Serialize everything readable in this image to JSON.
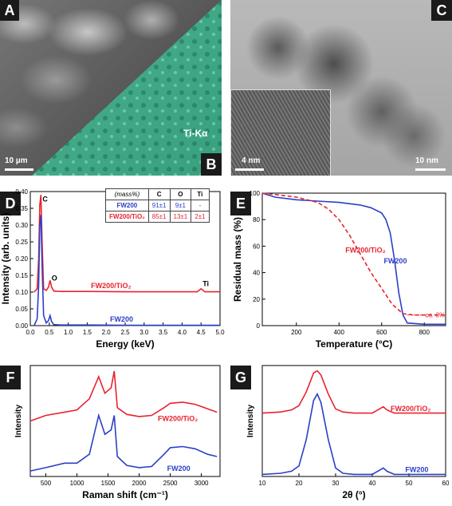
{
  "panels": {
    "A": {
      "letter": "A",
      "scale": "10 µm"
    },
    "B": {
      "letter": "B",
      "element_label": "Ti-Kα"
    },
    "C": {
      "letter": "C",
      "inset_scale": "4 nm",
      "scale": "10 nm"
    },
    "D": {
      "letter": "D"
    },
    "E": {
      "letter": "E"
    },
    "F": {
      "letter": "F"
    },
    "G": {
      "letter": "G"
    }
  },
  "table": {
    "header": [
      "(mass%)",
      "C",
      "O",
      "Ti"
    ],
    "rows": [
      {
        "label": "FW200",
        "values": [
          "91±1",
          "9±1",
          "-"
        ],
        "color": "#2b3fc8"
      },
      {
        "label": "FW200/TiO₂",
        "values": [
          "85±1",
          "13±1",
          "2±1"
        ],
        "color": "#e8232f"
      }
    ]
  },
  "colors": {
    "fw200": "#2b3fc8",
    "fw200tio2": "#e8232f"
  },
  "chart_data": [
    {
      "id": "D",
      "type": "line",
      "xlabel": "Energy (keV)",
      "ylabel": "Intensity (arb. units)",
      "xlim": [
        0,
        5
      ],
      "ylim": [
        0,
        0.4
      ],
      "xticks": [
        "0.0",
        "0.5",
        "1.0",
        "1.5",
        "2.0",
        "2.5",
        "3.0",
        "3.5",
        "4.0",
        "4.5",
        "5.0"
      ],
      "yticks": [
        "0.00",
        "0.05",
        "0.10",
        "0.15",
        "0.20",
        "0.25",
        "0.30",
        "0.35",
        "0.40"
      ],
      "peak_labels": [
        {
          "text": "C",
          "x": 0.28,
          "y": 0.37
        },
        {
          "text": "O",
          "x": 0.52,
          "y": 0.135
        },
        {
          "text": "Ti",
          "x": 4.5,
          "y": 0.118
        }
      ],
      "series": [
        {
          "name": "FW200/TiO₂",
          "color": "#e8232f",
          "x": [
            0.1,
            0.18,
            0.22,
            0.25,
            0.28,
            0.31,
            0.35,
            0.42,
            0.48,
            0.52,
            0.56,
            0.62,
            0.8,
            1.5,
            2.5,
            3.5,
            4.4,
            4.5,
            4.6,
            5.0
          ],
          "y": [
            0.1,
            0.11,
            0.2,
            0.36,
            0.39,
            0.25,
            0.11,
            0.105,
            0.115,
            0.135,
            0.115,
            0.103,
            0.102,
            0.102,
            0.101,
            0.101,
            0.101,
            0.11,
            0.101,
            0.101
          ]
        },
        {
          "name": "FW200",
          "color": "#2b3fc8",
          "x": [
            0.1,
            0.18,
            0.22,
            0.25,
            0.28,
            0.31,
            0.35,
            0.42,
            0.48,
            0.52,
            0.56,
            0.62,
            0.8,
            1.5,
            2.5,
            3.5,
            5.0
          ],
          "y": [
            0.0,
            0.02,
            0.12,
            0.3,
            0.33,
            0.18,
            0.03,
            0.008,
            0.015,
            0.03,
            0.012,
            0.003,
            0.002,
            0.002,
            0.001,
            0.001,
            0.001
          ]
        }
      ],
      "series_labels": [
        {
          "text": "FW200/TiO₂",
          "x": 1.6,
          "y": 0.112
        },
        {
          "text": "FW200",
          "x": 2.1,
          "y": 0.012
        }
      ]
    },
    {
      "id": "E",
      "type": "line",
      "xlabel": "Temperature (°C)",
      "ylabel": "Residual mass (%)",
      "xlim": [
        40,
        900
      ],
      "ylim": [
        0,
        100
      ],
      "xticks": [
        "200",
        "400",
        "600",
        "800"
      ],
      "yticks": [
        "0",
        "20",
        "40",
        "60",
        "80",
        "100"
      ],
      "annotation": "ca. 8%",
      "series": [
        {
          "name": "FW200",
          "color": "#2b3fc8",
          "dash": "solid",
          "x": [
            40,
            100,
            200,
            300,
            400,
            500,
            550,
            600,
            620,
            640,
            660,
            680,
            700,
            720,
            800,
            900
          ],
          "y": [
            100,
            97,
            95,
            94,
            93,
            91,
            89,
            85,
            80,
            70,
            50,
            25,
            8,
            2,
            1,
            1
          ]
        },
        {
          "name": "FW200/TiO₂",
          "color": "#e8232f",
          "dash": "dashed",
          "x": [
            40,
            100,
            200,
            300,
            350,
            400,
            450,
            500,
            550,
            600,
            650,
            700,
            750,
            800,
            900
          ],
          "y": [
            100,
            99,
            97,
            93,
            88,
            80,
            68,
            54,
            40,
            28,
            16,
            9,
            8,
            8,
            8
          ]
        }
      ],
      "series_labels": [
        {
          "text": "FW200/TiO₂",
          "x": 430,
          "y": 55
        },
        {
          "text": "FW200",
          "x": 610,
          "y": 47
        }
      ]
    },
    {
      "id": "F",
      "type": "line",
      "xlabel": "Raman shift (cm⁻¹)",
      "ylabel": "Intensity",
      "xlim": [
        250,
        3300
      ],
      "xticks": [
        "500",
        "1000",
        "1500",
        "2000",
        "2500",
        "3000"
      ],
      "series": [
        {
          "name": "FW200/TiO₂",
          "color": "#e8232f",
          "x": [
            250,
            500,
            800,
            1000,
            1200,
            1350,
            1450,
            1550,
            1600,
            1650,
            1800,
            2000,
            2200,
            2400,
            2500,
            2700,
            2900,
            3100,
            3250
          ],
          "y": [
            0.5,
            0.55,
            0.58,
            0.6,
            0.7,
            0.9,
            0.75,
            0.8,
            0.95,
            0.62,
            0.56,
            0.54,
            0.55,
            0.62,
            0.66,
            0.67,
            0.65,
            0.61,
            0.58
          ]
        },
        {
          "name": "FW200",
          "color": "#2b3fc8",
          "x": [
            250,
            500,
            800,
            1000,
            1200,
            1350,
            1450,
            1550,
            1600,
            1650,
            1800,
            2000,
            2200,
            2400,
            2500,
            2700,
            2900,
            3100,
            3250
          ],
          "y": [
            0.05,
            0.08,
            0.12,
            0.12,
            0.2,
            0.55,
            0.38,
            0.42,
            0.55,
            0.18,
            0.1,
            0.08,
            0.09,
            0.2,
            0.26,
            0.27,
            0.25,
            0.2,
            0.18
          ]
        }
      ],
      "series_labels": [
        {
          "text": "FW200/TiO₂",
          "x": 2300,
          "y": 0.5
        },
        {
          "text": "FW200",
          "x": 2450,
          "y": 0.05
        }
      ]
    },
    {
      "id": "G",
      "type": "line",
      "xlabel": "2θ (°)",
      "ylabel": "Intensity",
      "xlim": [
        10,
        60
      ],
      "xticks": [
        "10",
        "20",
        "30",
        "40",
        "50",
        "60"
      ],
      "series": [
        {
          "name": "FW200/TiO₂",
          "color": "#e8232f",
          "x": [
            10,
            15,
            18,
            20,
            22,
            24,
            25,
            26,
            28,
            30,
            32,
            35,
            40,
            42,
            43,
            44,
            46,
            50,
            55,
            60
          ],
          "y": [
            0.6,
            0.61,
            0.63,
            0.67,
            0.8,
            0.98,
            1.0,
            0.96,
            0.78,
            0.64,
            0.61,
            0.6,
            0.6,
            0.64,
            0.66,
            0.63,
            0.6,
            0.6,
            0.6,
            0.6
          ]
        },
        {
          "name": "FW200",
          "color": "#2b3fc8",
          "x": [
            10,
            15,
            18,
            20,
            22,
            24,
            25,
            26,
            28,
            30,
            32,
            35,
            40,
            42,
            43,
            44,
            46,
            50,
            55,
            60
          ],
          "y": [
            0.02,
            0.03,
            0.05,
            0.1,
            0.35,
            0.72,
            0.78,
            0.7,
            0.35,
            0.08,
            0.03,
            0.02,
            0.02,
            0.06,
            0.08,
            0.05,
            0.02,
            0.02,
            0.02,
            0.02
          ]
        }
      ],
      "series_labels": [
        {
          "text": "FW200/TiO₂",
          "x": 45,
          "y": 0.62
        },
        {
          "text": "FW200",
          "x": 49,
          "y": 0.04
        }
      ]
    }
  ]
}
